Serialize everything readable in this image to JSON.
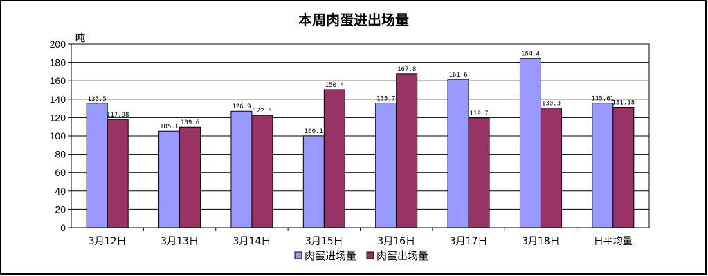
{
  "chart_data": {
    "type": "bar",
    "title": "本周肉蛋进出场量",
    "ylabel": "吨",
    "xlabel": "",
    "ylim": [
      0,
      200
    ],
    "yticks": [
      0,
      20,
      40,
      60,
      80,
      100,
      120,
      140,
      160,
      180,
      200
    ],
    "grid": true,
    "legend_position": "bottom",
    "categories": [
      "3月12日",
      "3月13日",
      "3月14日",
      "3月15日",
      "3月16日",
      "3月17日",
      "3月18日",
      "日平均量"
    ],
    "series": [
      {
        "name": "肉蛋进场量",
        "color": "#9999ff",
        "values": [
          135.5,
          105.1,
          126.9,
          100.1,
          135.7,
          161.6,
          184.4,
          135.61
        ],
        "labels": [
          "135.5",
          "105.1",
          "126.9",
          "100.1",
          "135.7",
          "161.6",
          "184.4",
          "135.61"
        ]
      },
      {
        "name": "肉蛋出场量",
        "color": "#993366",
        "values": [
          117.98,
          109.6,
          122.5,
          150.4,
          167.8,
          119.7,
          130.3,
          131.18
        ],
        "labels": [
          "117.98",
          "109.6",
          "122.5",
          "150.4",
          "167.8",
          "119.7",
          "130.3",
          "131.18"
        ]
      }
    ]
  }
}
